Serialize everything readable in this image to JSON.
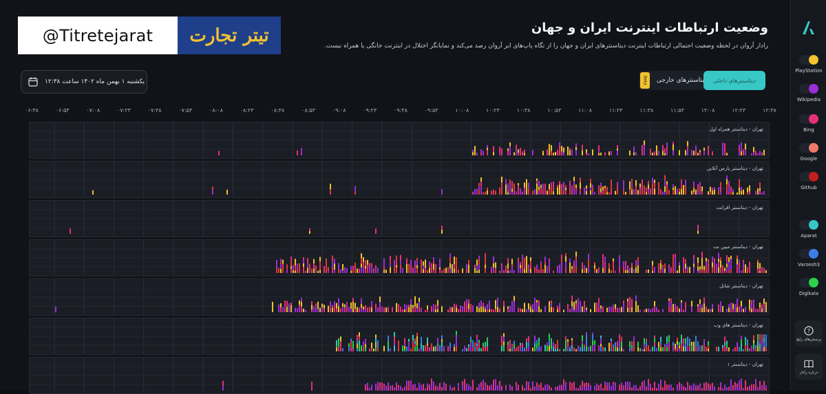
{
  "brand": {
    "handle": "@Titretejarat",
    "logo_text": "تیتر تجارت"
  },
  "header": {
    "title": "وضعیت ارتباطات اینترنت ایران و جهان",
    "subtitle": "رادار آروان در لحظه وضعیت احتمالی ارتباطات اینترنت دیتاسنترهای ایران و جهان را از نگاه پاپ‌های ابر آروان رصد می‌کند و نمایانگر اختلال در اینترنت خانگی یا همراه نیست."
  },
  "datebox": {
    "text": "یکشنبه ۱ بهمن ماه ۱۴۰۲ ساعت ۱۲:۳۸"
  },
  "toggle": {
    "inner": "دیتاسنترهای داخلی",
    "outer": "دیتاسنترهای خارجی",
    "beta": "Beta"
  },
  "time_ticks": [
    "۰۶:۳۸",
    "۰۶:۵۳",
    "۰۷:۰۸",
    "۰۷:۲۳",
    "۰۷:۳۸",
    "۰۷:۵۳",
    "۰۸:۰۸",
    "۰۸:۲۳",
    "۰۸:۳۸",
    "۰۸:۵۳",
    "۰۹:۰۸",
    "۰۹:۲۳",
    "۰۹:۳۸",
    "۰۹:۵۳",
    "۱۰:۰۸",
    "۱۰:۲۳",
    "۱۰:۳۸",
    "۱۰:۵۳",
    "۱۱:۰۸",
    "۱۱:۲۳",
    "۱۱:۳۸",
    "۱۱:۵۳",
    "۱۲:۰۸",
    "۱۲:۲۳",
    "۱۲:۳۸"
  ],
  "rows": [
    {
      "label": "تهران - دیتاسنتر همراه اول",
      "activity_start": 0.6,
      "density": 0.55,
      "colors": [
        "#f2c230",
        "#e8307a",
        "#9b2fd6"
      ]
    },
    {
      "label": "تهران - دیتاسنتر پارس آنلاین",
      "activity_start": 0.6,
      "density": 0.8,
      "colors": [
        "#f2c230",
        "#e8307a",
        "#9b2fd6",
        "#e03a3a"
      ]
    },
    {
      "label": "تهران - دیتاسنتر افرانت",
      "activity_start": 0.95,
      "density": 0.05,
      "colors": [
        "#f2c230",
        "#e8307a",
        "#2ad14b"
      ]
    },
    {
      "label": "تهران - دیتاسنتر مبین نت",
      "activity_start": 0.33,
      "density": 0.75,
      "colors": [
        "#f2c230",
        "#e8307a",
        "#9b2fd6",
        "#e03a3a"
      ]
    },
    {
      "label": "تهران - دیتاسنتر شاتل",
      "activity_start": 0.33,
      "density": 0.8,
      "colors": [
        "#f2c230",
        "#e8307a",
        "#9b2fd6"
      ]
    },
    {
      "label": "تهران - دیتاسنتر های وب",
      "activity_start": 0.41,
      "density": 0.85,
      "colors": [
        "#f2c230",
        "#e8307a",
        "#9b2fd6",
        "#e03a3a",
        "#2ad14b",
        "#3a7fe8",
        "#37c7c4"
      ]
    },
    {
      "label": "تهران - دیتاسنتر ۱",
      "activity_start": 0.45,
      "density": 0.9,
      "colors": [
        "#e8307a",
        "#9b2fd6"
      ]
    }
  ],
  "sidebar": {
    "services": [
      {
        "name": "PlayStation",
        "color": "#f2c230"
      },
      {
        "name": "Wikipedia",
        "color": "#9b2fd6"
      },
      {
        "name": "Bing",
        "color": "#e8307a"
      },
      {
        "name": "Google",
        "color": "#f07a6a"
      },
      {
        "name": "Github",
        "color": "#c21e1e"
      },
      {
        "name": "Aparat",
        "color": "#37c7c4"
      },
      {
        "name": "Varzesh3",
        "color": "#3a7fe8"
      },
      {
        "name": "Digikala",
        "color": "#2ad14b"
      }
    ],
    "faq_label": "پرسش‌های رایج",
    "guide_label": "درباره رادار"
  },
  "colors": {
    "accent": "#37c7c4",
    "bg": "#111318",
    "panel": "#1a1d24"
  }
}
